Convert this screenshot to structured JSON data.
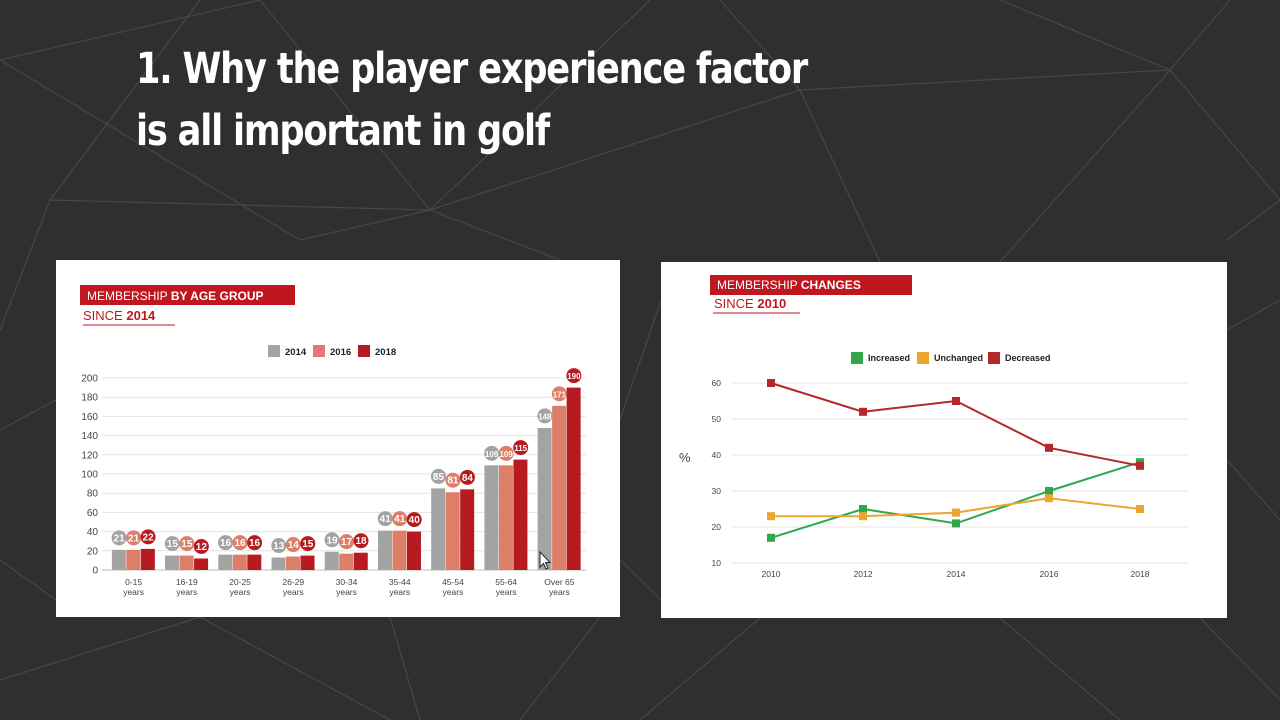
{
  "slide": {
    "title_line1": "1. Why the player experience factor",
    "title_line2": "is all important in golf"
  },
  "colors": {
    "background": "#2f2e30",
    "accent_red": "#c0161f",
    "c2014": "#a3a3a3",
    "c2016": "#dc7e68",
    "c2018": "#b51b20",
    "increased": "#2ea84a",
    "unchanged": "#eca52d",
    "decreased": "#b5272a"
  },
  "chart_data": [
    {
      "type": "bar",
      "title_band": "MEMBERSHIP",
      "title_band_bold": "BY AGE GROUP",
      "subtitle": "SINCE",
      "subtitle_bold": "2014",
      "ylim": [
        0,
        200
      ],
      "yticks": [
        "0",
        "20",
        "40",
        "60",
        "80",
        "100",
        "120",
        "140",
        "160",
        "180",
        "200"
      ],
      "categories": [
        [
          "0-15",
          "years"
        ],
        [
          "16-19",
          "years"
        ],
        [
          "20-25",
          "years"
        ],
        [
          "26-29",
          "years"
        ],
        [
          "30-34",
          "years"
        ],
        [
          "35-44",
          "years"
        ],
        [
          "45-54",
          "years"
        ],
        [
          "55-64",
          "years"
        ],
        [
          "Over 65",
          "years"
        ]
      ],
      "series": [
        {
          "name": "2014",
          "color": "#a3a3a3",
          "values": [
            21,
            15,
            16,
            13,
            19,
            41,
            85,
            109,
            148
          ]
        },
        {
          "name": "2016",
          "color": "#dc7e68",
          "values": [
            21,
            15,
            16,
            14,
            17,
            41,
            81,
            109,
            171
          ]
        },
        {
          "name": "2018",
          "color": "#b51b20",
          "values": [
            22,
            12,
            16,
            15,
            18,
            40,
            84,
            115,
            190
          ]
        }
      ],
      "legend_position": "top-center",
      "grid": true
    },
    {
      "type": "line",
      "title_band": "MEMBERSHIP",
      "title_band_bold": "CHANGES",
      "subtitle": "SINCE",
      "subtitle_bold": "2010",
      "ylabel": "%",
      "x": [
        "2010",
        "2012",
        "2014",
        "2016",
        "2018"
      ],
      "ylim": [
        10,
        60
      ],
      "yticks": [
        "60",
        "50",
        "40",
        "30",
        "20",
        "10"
      ],
      "series": [
        {
          "name": "Increased",
          "color": "#2ea84a",
          "values": [
            17,
            25,
            21,
            30,
            38
          ]
        },
        {
          "name": "Unchanged",
          "color": "#eca52d",
          "values": [
            23,
            23,
            24,
            28,
            25
          ]
        },
        {
          "name": "Decreased",
          "color": "#b5272a",
          "values": [
            60,
            52,
            55,
            42,
            37
          ]
        }
      ],
      "legend_position": "top-center",
      "grid": true
    }
  ]
}
